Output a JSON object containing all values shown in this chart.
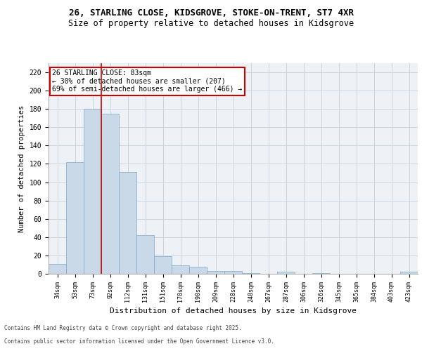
{
  "title_line1": "26, STARLING CLOSE, KIDSGROVE, STOKE-ON-TRENT, ST7 4XR",
  "title_line2": "Size of property relative to detached houses in Kidsgrove",
  "xlabel": "Distribution of detached houses by size in Kidsgrove",
  "ylabel": "Number of detached properties",
  "categories": [
    "34sqm",
    "53sqm",
    "73sqm",
    "92sqm",
    "112sqm",
    "131sqm",
    "151sqm",
    "170sqm",
    "190sqm",
    "209sqm",
    "228sqm",
    "248sqm",
    "267sqm",
    "287sqm",
    "306sqm",
    "326sqm",
    "345sqm",
    "365sqm",
    "384sqm",
    "403sqm",
    "423sqm"
  ],
  "values": [
    11,
    122,
    180,
    175,
    111,
    42,
    19,
    9,
    8,
    3,
    3,
    1,
    0,
    2,
    0,
    1,
    0,
    0,
    0,
    0,
    2
  ],
  "bar_color": "#c9d9e8",
  "bar_edgecolor": "#7aaaca",
  "grid_color": "#c8d4e0",
  "background_color": "#eef2f7",
  "vline_x": 2.5,
  "vline_color": "#cc0000",
  "annotation_text": "26 STARLING CLOSE: 83sqm\n← 30% of detached houses are smaller (207)\n69% of semi-detached houses are larger (466) →",
  "annotation_box_color": "#cc0000",
  "ylim": [
    0,
    230
  ],
  "yticks": [
    0,
    20,
    40,
    60,
    80,
    100,
    120,
    140,
    160,
    180,
    200,
    220
  ],
  "footer_line1": "Contains HM Land Registry data © Crown copyright and database right 2025.",
  "footer_line2": "Contains public sector information licensed under the Open Government Licence v3.0."
}
